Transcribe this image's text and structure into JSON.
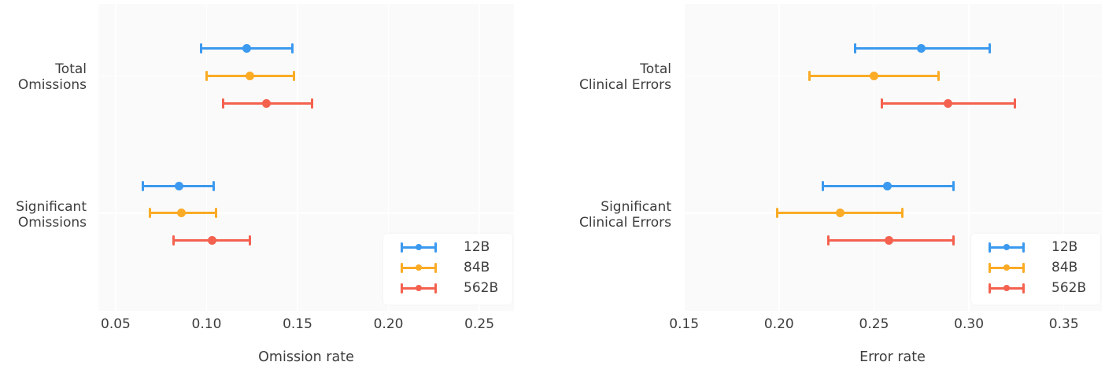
{
  "colors": {
    "figure_background": "#ffffff",
    "plot_background": "#fafafa",
    "gridline": "#ffffff",
    "text": "#3d3d3d",
    "series_12B": "#3b99ef",
    "series_84B": "#fbab25",
    "series_562B": "#f4614e"
  },
  "chart_data": [
    {
      "type": "scatter",
      "subtype": "point-estimates-with-error-bars",
      "title": "",
      "xlabel": "Omission rate",
      "ylabel": "",
      "xlim": [
        0.0405,
        0.269
      ],
      "grid": true,
      "legend_position": "lower right",
      "xticks": [
        0.05,
        0.1,
        0.15,
        0.2,
        0.25
      ],
      "xtick_labels": [
        "0.05",
        "0.10",
        "0.15",
        "0.20",
        "0.25"
      ],
      "categories": [
        "Total Omissions",
        "Significant Omissions"
      ],
      "category_label_lines": [
        [
          "Total",
          "Omissions"
        ],
        [
          "Significant",
          "Omissions"
        ]
      ],
      "series": [
        {
          "name": "12B",
          "color": "#3b99ef",
          "values": [
            0.122,
            0.085
          ],
          "ci_low": [
            0.097,
            0.065
          ],
          "ci_high": [
            0.147,
            0.104
          ]
        },
        {
          "name": "84B",
          "color": "#fbab25",
          "values": [
            0.124,
            0.086
          ],
          "ci_low": [
            0.1,
            0.069
          ],
          "ci_high": [
            0.148,
            0.105
          ]
        },
        {
          "name": "562B",
          "color": "#f4614e",
          "values": [
            0.133,
            0.103
          ],
          "ci_low": [
            0.109,
            0.082
          ],
          "ci_high": [
            0.158,
            0.124
          ]
        }
      ]
    },
    {
      "type": "scatter",
      "subtype": "point-estimates-with-error-bars",
      "title": "",
      "xlabel": "Error rate",
      "ylabel": "",
      "xlim": [
        0.1495,
        0.37
      ],
      "grid": true,
      "legend_position": "lower right",
      "xticks": [
        0.15,
        0.2,
        0.25,
        0.3,
        0.35
      ],
      "xtick_labels": [
        "0.15",
        "0.20",
        "0.25",
        "0.30",
        "0.35"
      ],
      "categories": [
        "Total Clinical Errors",
        "Significant Clinical Errors"
      ],
      "category_label_lines": [
        [
          "Total",
          "Clinical Errors"
        ],
        [
          "Significant",
          "Clinical Errors"
        ]
      ],
      "series": [
        {
          "name": "12B",
          "color": "#3b99ef",
          "values": [
            0.275,
            0.257
          ],
          "ci_low": [
            0.24,
            0.223
          ],
          "ci_high": [
            0.311,
            0.292
          ]
        },
        {
          "name": "84B",
          "color": "#fbab25",
          "values": [
            0.25,
            0.232
          ],
          "ci_low": [
            0.216,
            0.199
          ],
          "ci_high": [
            0.284,
            0.265
          ]
        },
        {
          "name": "562B",
          "color": "#f4614e",
          "values": [
            0.289,
            0.258
          ],
          "ci_low": [
            0.254,
            0.226
          ],
          "ci_high": [
            0.324,
            0.292
          ]
        }
      ]
    }
  ]
}
